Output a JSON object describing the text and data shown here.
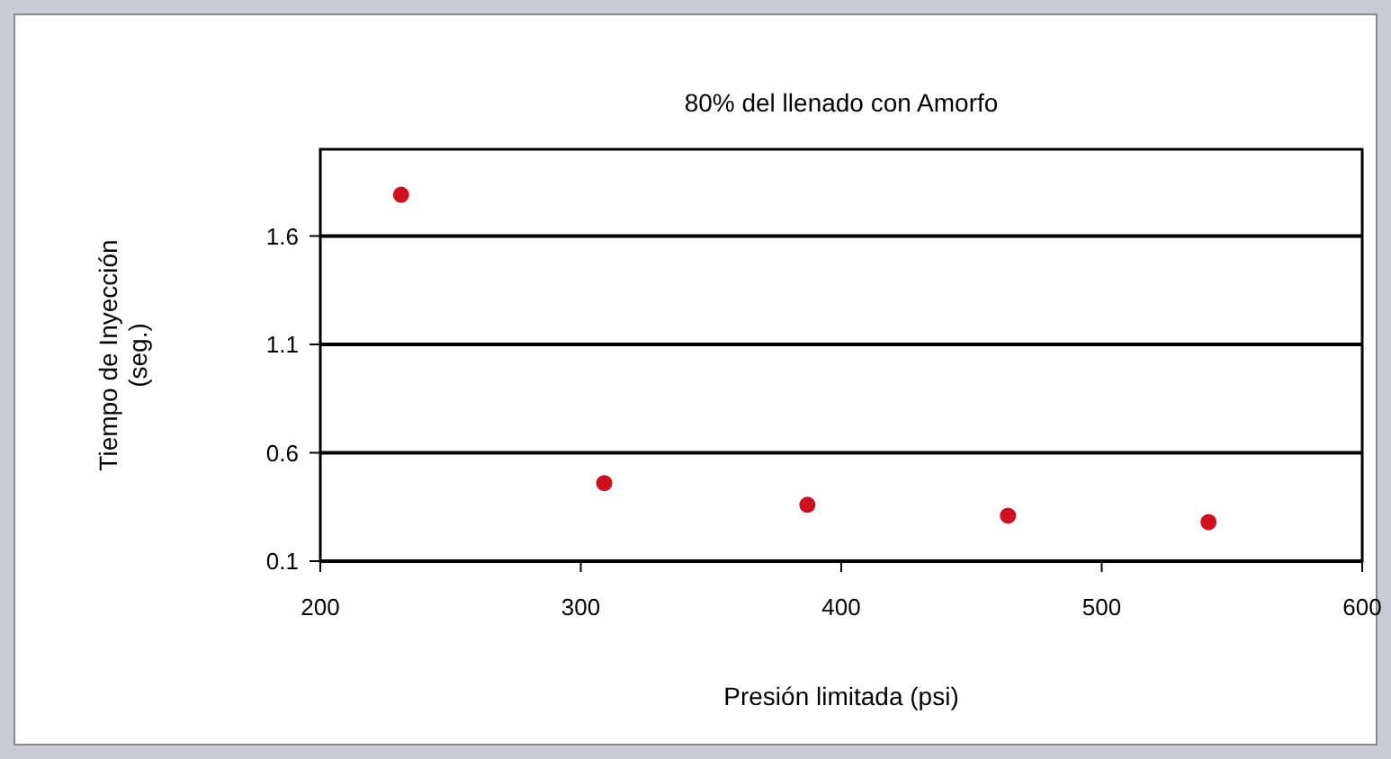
{
  "chart_data": {
    "type": "scatter",
    "title": "80% del llenado con Amorfo",
    "xlabel": "Presión limitada (psi)",
    "ylabel": "Tiempo de Inyección (seg.)",
    "x": [
      231,
      309,
      387,
      464,
      541
    ],
    "series": [
      {
        "color": "#d0101c",
        "values": [
          1.79,
          0.46,
          0.36,
          0.31,
          0.28
        ]
      }
    ],
    "xlim": [
      200,
      600
    ],
    "xticks": [
      200,
      300,
      400,
      500,
      600
    ],
    "ylim": [
      0.1,
      2.0
    ],
    "yticks": [
      0.1,
      0.6,
      1.1,
      1.6
    ],
    "grid": "y",
    "marker": "circle"
  }
}
